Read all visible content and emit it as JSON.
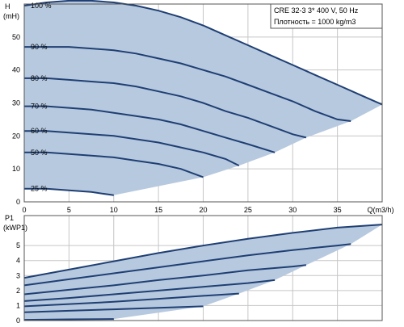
{
  "chart_data": [
    {
      "type": "line",
      "title_line1": "CRE 32-3    3* 400 V, 50 Hz",
      "title_line2": "Плотность = 1000 kg/m3",
      "ylabel_line1": "H",
      "ylabel_line2": "(mH)",
      "xlabel": "Q(m3/h)",
      "xlim": [
        0,
        40
      ],
      "ylim": [
        0,
        60
      ],
      "x_ticks": [
        "0",
        "5",
        "10",
        "15",
        "20",
        "25",
        "30",
        "35"
      ],
      "y_ticks": [
        "0",
        "10",
        "20",
        "30",
        "40",
        "50"
      ],
      "grid": true,
      "colors": {
        "curve": "#1f3f73",
        "area": "#b7c9df",
        "grid": "#c6c6c6"
      },
      "series": [
        {
          "name": "100 %",
          "x": [
            0,
            2.5,
            5,
            7.5,
            10,
            12.5,
            15,
            17.5,
            20,
            22.5,
            25,
            27.5,
            30,
            32.5,
            35,
            37.5,
            40
          ],
          "y": [
            59.5,
            60.5,
            61,
            61,
            60.5,
            59.5,
            58,
            56,
            53.5,
            50.5,
            47.5,
            44.5,
            41.5,
            38.5,
            35.5,
            32.5,
            29.5
          ]
        },
        {
          "name": "90 %",
          "x": [
            0,
            2.5,
            5,
            7.5,
            10,
            12.5,
            15,
            17.5,
            20,
            22.5,
            25,
            27.5,
            30,
            32.5,
            35,
            36.5
          ],
          "y": [
            47,
            47,
            47,
            46.5,
            46,
            45,
            43.5,
            42,
            40,
            38,
            35.5,
            33,
            30.5,
            27.5,
            25,
            24.5
          ]
        },
        {
          "name": "80 %",
          "x": [
            0,
            2.5,
            5,
            7.5,
            10,
            12.5,
            15,
            17.5,
            20,
            22.5,
            25,
            27.5,
            30,
            31.5
          ],
          "y": [
            37.5,
            37.5,
            37,
            36.5,
            36,
            35,
            33.5,
            32,
            30,
            27.5,
            25.5,
            23,
            20.5,
            19.5
          ]
        },
        {
          "name": "70 %",
          "x": [
            0,
            2.5,
            5,
            7.5,
            10,
            12.5,
            15,
            17.5,
            20,
            22.5,
            25,
            28
          ],
          "y": [
            29,
            29,
            28.5,
            28,
            27,
            26,
            25,
            23.5,
            21.5,
            19.5,
            17.5,
            15
          ]
        },
        {
          "name": "60 %",
          "x": [
            0,
            2.5,
            5,
            7.5,
            10,
            12.5,
            15,
            17.5,
            20,
            22.5,
            24
          ],
          "y": [
            21.5,
            21.5,
            21,
            20.5,
            20,
            19,
            18,
            16.5,
            15,
            13,
            11
          ]
        },
        {
          "name": "50 %",
          "x": [
            0,
            2.5,
            5,
            7.5,
            10,
            12.5,
            15,
            17.5,
            20
          ],
          "y": [
            15,
            15,
            14.5,
            14,
            13.5,
            12.5,
            11.5,
            10,
            7.5
          ]
        },
        {
          "name": "25 %",
          "x": [
            0,
            2.5,
            5,
            7.5,
            10
          ],
          "y": [
            4,
            4,
            3.5,
            3,
            2
          ]
        }
      ]
    },
    {
      "type": "line",
      "ylabel_line1": "P1",
      "ylabel_line2": "(kWP1)",
      "xlim": [
        0,
        40
      ],
      "ylim": [
        0,
        7
      ],
      "y_ticks": [
        "0",
        "1",
        "2",
        "3",
        "4",
        "5"
      ],
      "grid": true,
      "colors": {
        "curve": "#1f3f73",
        "area": "#b7c9df",
        "grid": "#c6c6c6"
      },
      "series": [
        {
          "x": [
            0,
            5,
            10,
            15,
            20,
            25,
            30,
            35,
            40
          ],
          "y": [
            2.85,
            3.4,
            3.95,
            4.5,
            5.0,
            5.45,
            5.85,
            6.2,
            6.4
          ]
        },
        {
          "x": [
            0,
            5,
            10,
            15,
            20,
            25,
            30,
            35,
            36.5
          ],
          "y": [
            2.35,
            2.75,
            3.15,
            3.55,
            3.95,
            4.35,
            4.7,
            5.0,
            5.1
          ]
        },
        {
          "x": [
            0,
            5,
            10,
            15,
            20,
            25,
            30,
            31.5
          ],
          "y": [
            1.75,
            2.05,
            2.35,
            2.7,
            3.0,
            3.35,
            3.6,
            3.7
          ]
        },
        {
          "x": [
            0,
            5,
            10,
            15,
            20,
            25,
            28
          ],
          "y": [
            1.3,
            1.5,
            1.75,
            2.0,
            2.25,
            2.5,
            2.7
          ]
        },
        {
          "x": [
            0,
            5,
            10,
            15,
            20,
            24
          ],
          "y": [
            0.95,
            1.1,
            1.25,
            1.45,
            1.65,
            1.8
          ]
        },
        {
          "x": [
            0,
            5,
            10,
            15,
            20
          ],
          "y": [
            0.55,
            0.65,
            0.75,
            0.85,
            0.95
          ]
        },
        {
          "x": [
            0,
            5,
            10
          ],
          "y": [
            0.05,
            0.08,
            0.1
          ]
        }
      ]
    }
  ]
}
